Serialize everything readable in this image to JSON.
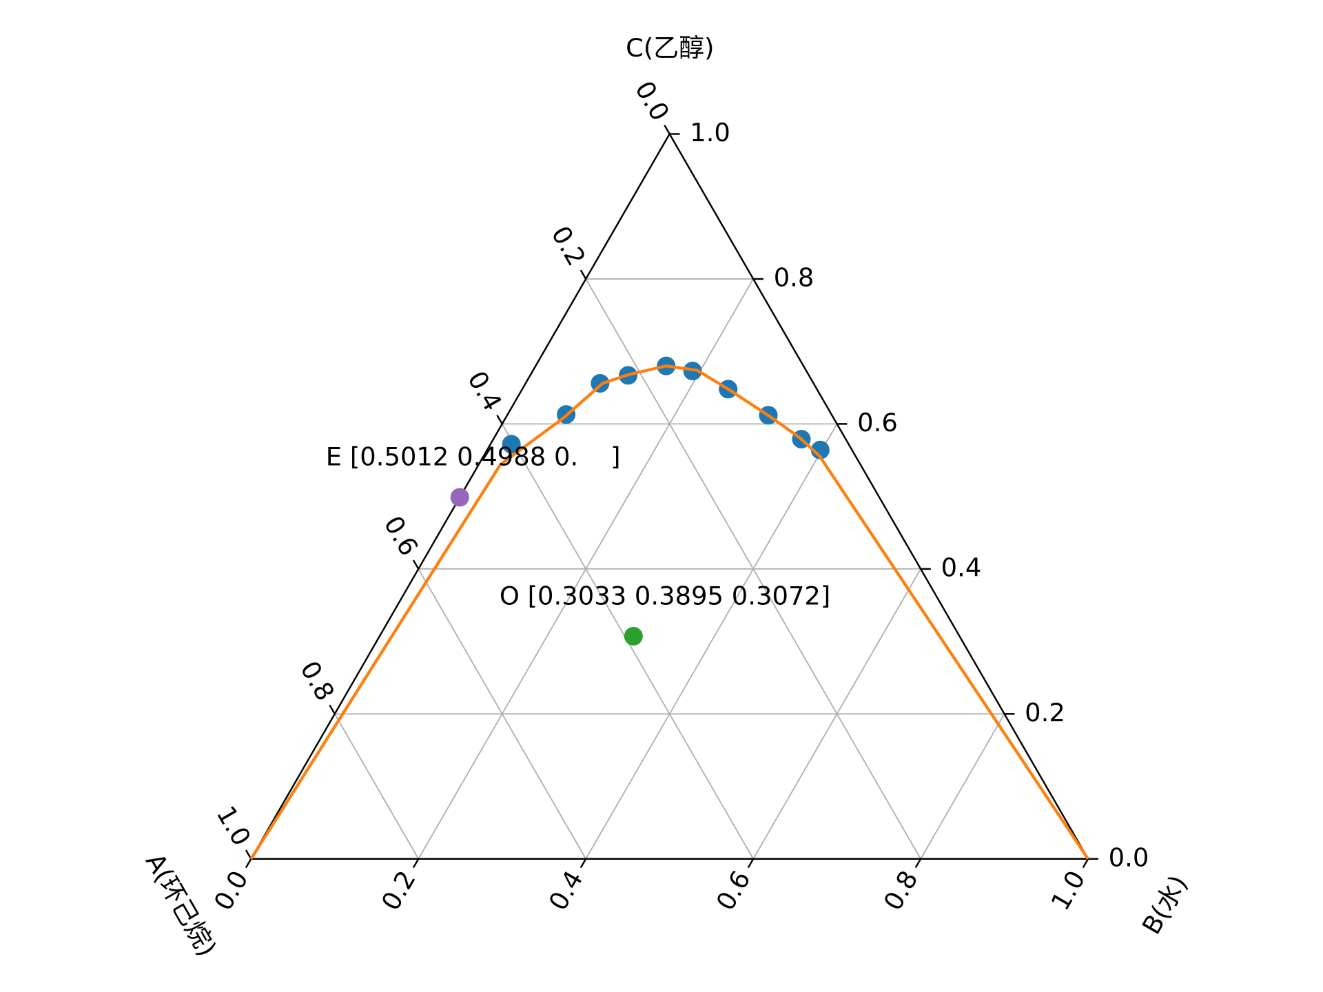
{
  "chart_data": {
    "type": "ternary",
    "a_label": "A(环己烷)",
    "b_label": "B(水)",
    "c_label": "C(乙醇)",
    "aticks": [
      {
        "value": 0,
        "label": "0.0"
      },
      0.2,
      0.4,
      0.6,
      0.8,
      {
        "value": 1,
        "label": "1.0"
      }
    ],
    "bticks": [
      {
        "value": 0,
        "label": "0.0"
      },
      0.2,
      0.4,
      0.6,
      0.8,
      {
        "value": 1,
        "label": "1.0"
      }
    ],
    "cticks": [
      {
        "value": 0,
        "label": "0.0"
      },
      0.2,
      0.4,
      0.6,
      0.8,
      {
        "value": 1,
        "label": "1.0"
      }
    ],
    "grid": true,
    "series": [
      {
        "type": "scatter",
        "color": "#1f77b4",
        "b": [
          0.025,
          0.07,
          0.089,
          0.117,
          0.156,
          0.191,
          0.246,
          0.312,
          0.368,
          0.398
        ],
        "c": [
          0.572,
          0.613,
          0.656,
          0.667,
          0.68,
          0.673,
          0.648,
          0.612,
          0.579,
          0.564
        ]
      },
      {
        "type": "line",
        "color": "#ff7f0e",
        "b": [
          0,
          0.026,
          0.069,
          0.092,
          0.117,
          0.156,
          0.196,
          0.248,
          0.317,
          0.365,
          0.401,
          1
        ],
        "c": [
          0,
          0.544,
          0.608,
          0.656,
          0.668,
          0.68,
          0.674,
          0.647,
          0.609,
          0.581,
          0.556,
          0
        ]
      }
    ],
    "annotations": [
      {
        "text": "E [0.5012 0.4988 0.    ]",
        "color": "#9467bd",
        "b": 0,
        "c": 0.4988
      },
      {
        "text": "O [0.3033 0.3895 0.3072]",
        "color": "#2ca02c",
        "b": 0.3033,
        "c": 0.3072
      }
    ]
  }
}
